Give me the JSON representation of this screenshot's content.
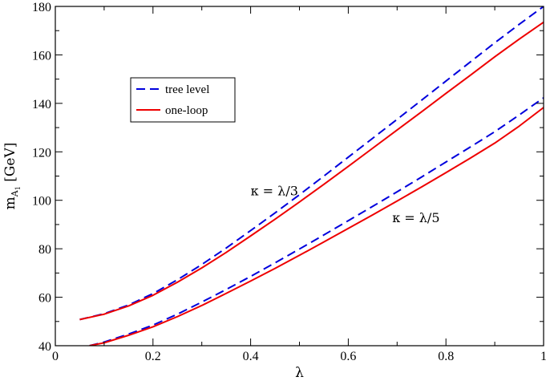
{
  "chart_data": {
    "type": "line",
    "xlabel": "λ",
    "ylabel_main": "m",
    "ylabel_sub": "A",
    "ylabel_subsub": "1",
    "ylabel_unit": " [GeV]",
    "xlim": [
      0,
      1
    ],
    "ylim": [
      40,
      180
    ],
    "xticks": [
      0,
      0.2,
      0.4,
      0.6,
      0.8,
      1
    ],
    "xtick_labels": [
      "0",
      "0.2",
      "0.4",
      "0.6",
      "0.8",
      "1"
    ],
    "yticks": [
      40,
      60,
      80,
      100,
      120,
      140,
      160,
      180
    ],
    "ytick_labels": [
      "40",
      "60",
      "80",
      "100",
      "120",
      "140",
      "160",
      "180"
    ],
    "legend": {
      "placement": "upper-left",
      "entries": [
        {
          "label": "tree level",
          "color": "#0000dd",
          "dash": true
        },
        {
          "label": "one-loop",
          "color": "#ee0000",
          "dash": false
        }
      ]
    },
    "annotations": [
      {
        "text": "κ = λ/3",
        "x": 0.4,
        "y": 102
      },
      {
        "text": "κ = λ/5",
        "x": 0.69,
        "y": 91
      }
    ],
    "series": [
      {
        "group": "kappa_lambda_over_3",
        "style": "tree level",
        "color": "#0000dd",
        "dash": true,
        "x": [
          0.05,
          0.1,
          0.15,
          0.2,
          0.25,
          0.3,
          0.35,
          0.4,
          0.45,
          0.5,
          0.55,
          0.6,
          0.65,
          0.7,
          0.75,
          0.8,
          0.85,
          0.9,
          0.95,
          1.0
        ],
        "y": [
          50.8,
          53.2,
          56.8,
          61.5,
          67.2,
          73.5,
          80.3,
          87.5,
          94.8,
          102.3,
          110.0,
          117.8,
          125.6,
          133.4,
          141.3,
          149.2,
          157.1,
          165.0,
          172.6,
          180.0
        ]
      },
      {
        "group": "kappa_lambda_over_3",
        "style": "one-loop",
        "color": "#ee0000",
        "dash": false,
        "x": [
          0.05,
          0.1,
          0.15,
          0.2,
          0.25,
          0.3,
          0.35,
          0.4,
          0.45,
          0.5,
          0.55,
          0.6,
          0.65,
          0.7,
          0.75,
          0.8,
          0.85,
          0.9,
          0.95,
          1.0
        ],
        "y": [
          50.8,
          53.0,
          56.4,
          60.8,
          66.2,
          72.1,
          78.5,
          85.3,
          92.2,
          99.3,
          106.6,
          114.0,
          121.5,
          129.0,
          136.5,
          144.1,
          151.6,
          159.2,
          166.5,
          173.5
        ]
      },
      {
        "group": "kappa_lambda_over_5",
        "style": "tree level",
        "color": "#0000dd",
        "dash": true,
        "x": [
          0.07,
          0.1,
          0.15,
          0.2,
          0.25,
          0.3,
          0.35,
          0.4,
          0.45,
          0.5,
          0.55,
          0.6,
          0.65,
          0.7,
          0.75,
          0.8,
          0.85,
          0.9,
          0.95,
          1.0
        ],
        "y": [
          40.0,
          41.5,
          44.8,
          48.5,
          53.0,
          58.0,
          63.2,
          68.6,
          74.2,
          79.9,
          85.7,
          91.6,
          97.5,
          103.5,
          109.6,
          115.8,
          122.0,
          128.3,
          135.2,
          142.3
        ]
      },
      {
        "group": "kappa_lambda_over_5",
        "style": "one-loop",
        "color": "#ee0000",
        "dash": false,
        "x": [
          0.07,
          0.1,
          0.15,
          0.2,
          0.25,
          0.3,
          0.35,
          0.4,
          0.45,
          0.5,
          0.55,
          0.6,
          0.65,
          0.7,
          0.75,
          0.8,
          0.85,
          0.9,
          0.95,
          1.0
        ],
        "y": [
          40.0,
          41.2,
          44.3,
          47.8,
          52.0,
          56.6,
          61.6,
          66.7,
          71.9,
          77.3,
          82.8,
          88.4,
          94.0,
          99.7,
          105.5,
          111.4,
          117.4,
          123.6,
          130.6,
          138.3
        ]
      }
    ]
  }
}
